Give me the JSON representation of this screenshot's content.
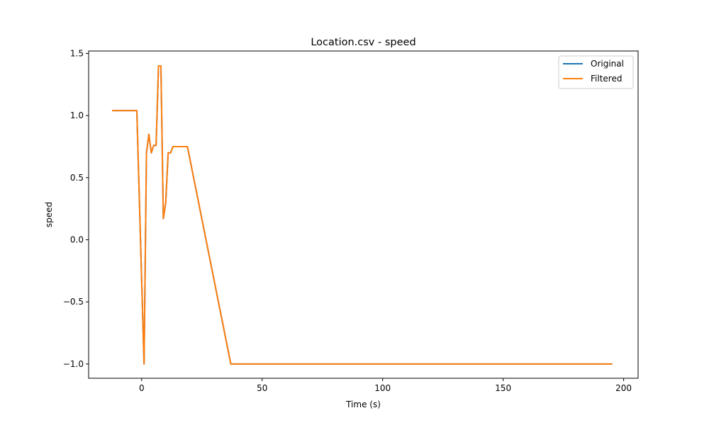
{
  "chart_data": {
    "type": "line",
    "title": "Location.csv - speed",
    "xlabel": "Time (s)",
    "ylabel": "speed",
    "xlim": [
      -22,
      206
    ],
    "ylim": [
      -1.115,
      1.52
    ],
    "xticks": [
      0,
      50,
      100,
      150,
      200
    ],
    "yticks": [
      -1.0,
      -0.5,
      0.0,
      0.5,
      1.0,
      1.5
    ],
    "xtick_labels": [
      "0",
      "50",
      "100",
      "150",
      "200"
    ],
    "ytick_labels": [
      "−1.0",
      "−0.5",
      "0.0",
      "0.5",
      "1.0",
      "1.5"
    ],
    "grid": false,
    "legend_position": "top-right",
    "series": [
      {
        "name": "Original",
        "color": "#1f77b4",
        "x": [
          -12,
          -2,
          1,
          2,
          3,
          4,
          5,
          6,
          7,
          8,
          9,
          10,
          11,
          12,
          13,
          19,
          37,
          195
        ],
        "y": [
          1.04,
          1.04,
          -1.0,
          0.7,
          0.85,
          0.7,
          0.76,
          0.76,
          1.4,
          1.4,
          0.17,
          0.3,
          0.7,
          0.7,
          0.75,
          0.75,
          -1.0,
          -1.0
        ]
      },
      {
        "name": "Filtered",
        "color": "#ff7f0e",
        "x": [
          -12,
          -2,
          1,
          2,
          3,
          4,
          5,
          6,
          7,
          8,
          9,
          10,
          11,
          12,
          13,
          19,
          37,
          195
        ],
        "y": [
          1.04,
          1.04,
          -1.0,
          0.7,
          0.85,
          0.7,
          0.76,
          0.76,
          1.4,
          1.4,
          0.17,
          0.3,
          0.7,
          0.7,
          0.75,
          0.75,
          -1.0,
          -1.0
        ]
      }
    ]
  }
}
